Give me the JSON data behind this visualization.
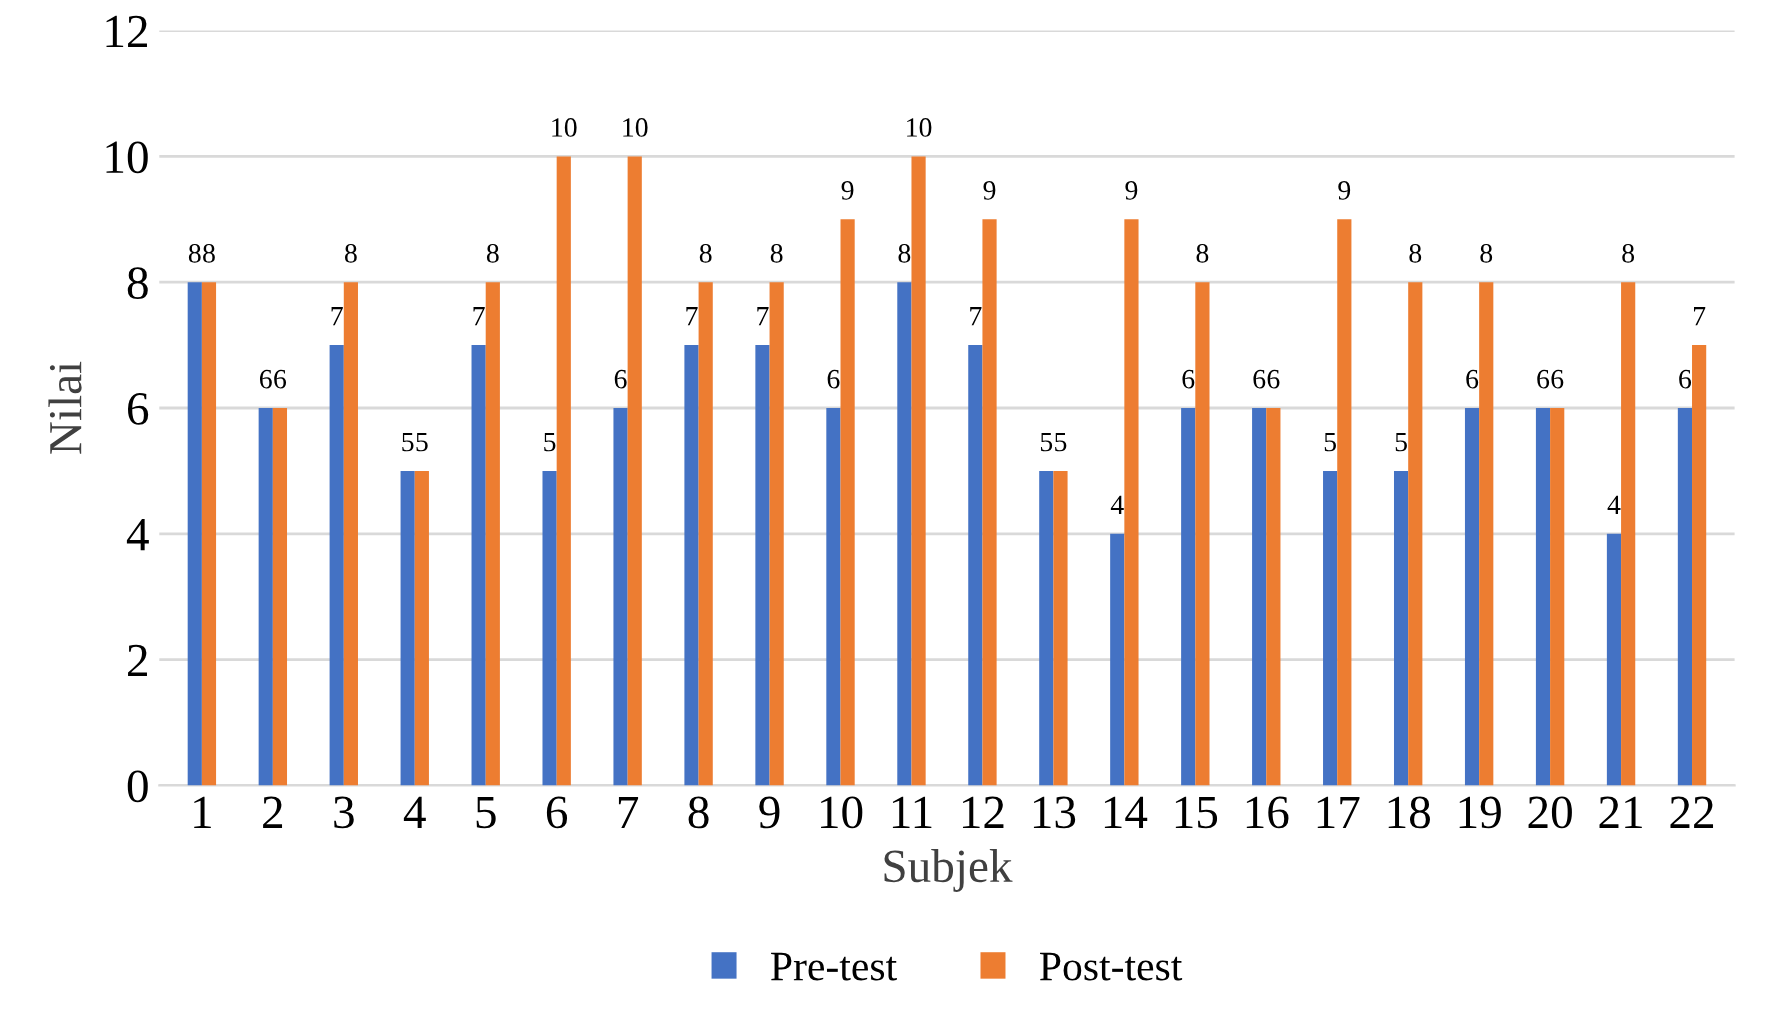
{
  "chart_data": {
    "type": "bar",
    "xlabel": "Subjek",
    "ylabel": "Nilai",
    "categories": [
      "1",
      "2",
      "3",
      "4",
      "5",
      "6",
      "7",
      "8",
      "9",
      "10",
      "11",
      "12",
      "13",
      "14",
      "15",
      "16",
      "17",
      "18",
      "19",
      "20",
      "21",
      "22"
    ],
    "series": [
      {
        "name": "Pre-test",
        "color": "#4472c4",
        "values": [
          8,
          6,
          7,
          5,
          7,
          5,
          6,
          7,
          7,
          6,
          8,
          7,
          5,
          4,
          6,
          6,
          5,
          5,
          6,
          6,
          4,
          6
        ]
      },
      {
        "name": "Post-test",
        "color": "#ed7d31",
        "values": [
          8,
          6,
          8,
          5,
          8,
          10,
          10,
          8,
          8,
          9,
          10,
          9,
          5,
          9,
          8,
          6,
          9,
          8,
          8,
          6,
          8,
          7
        ]
      }
    ],
    "ylim": [
      0,
      12
    ],
    "yticks": [
      0,
      2,
      4,
      6,
      8,
      10,
      12
    ],
    "grid": "y",
    "legend": "bottom",
    "data_labels": true
  }
}
